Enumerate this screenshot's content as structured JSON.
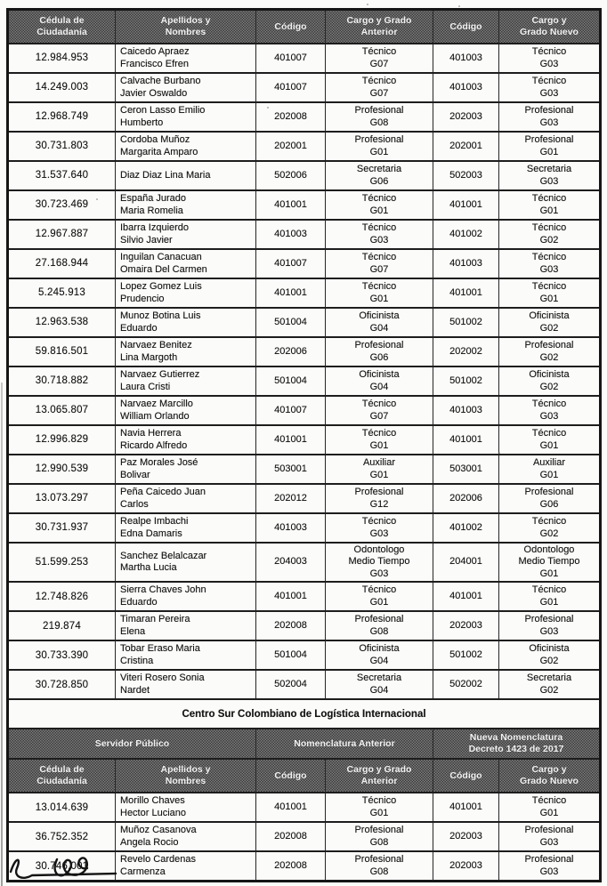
{
  "colors": {
    "paper": "#fbfbf9",
    "ink": "#141414",
    "header_bg": "#565656",
    "header_text": "#f3f3f3",
    "border": "#1d1d1d"
  },
  "table": {
    "headers": [
      "Cédula de\nCiudadanía",
      "Apellidos y\nNombres",
      "Código",
      "Cargo y Grado\nAnterior",
      "Código",
      "Cargo y\nGrado Nuevo"
    ],
    "rows": [
      [
        "12.984.953",
        "Caicedo Apraez\nFrancisco Efren",
        "401007",
        "Técnico\nG07",
        "401003",
        "Técnico\nG03"
      ],
      [
        "14.249.003",
        "Calvache Burbano\nJavier Oswaldo",
        "401007",
        "Técnico\nG07",
        "401003",
        "Técnico\nG03"
      ],
      [
        "12.968.749",
        "Ceron Lasso  Emilio\nHumberto",
        "202008",
        "Profesional\nG08",
        "202003",
        "Profesional\nG03"
      ],
      [
        "30.731.803",
        "Cordoba Muñoz\nMargarita Amparo",
        "202001",
        "Profesional\nG01",
        "202001",
        "Profesional\nG01"
      ],
      [
        "31.537.640",
        "Diaz Diaz Lina Maria",
        "502006",
        "Secretaria\nG06",
        "502003",
        "Secretaria\nG03"
      ],
      [
        "30.723.469",
        "España Jurado\nMaria Romelia",
        "401001",
        "Técnico\nG01",
        "401001",
        "Técnico\nG01"
      ],
      [
        "12.967.887",
        "Ibarra Izquierdo\nSilvio Javier",
        "401003",
        "Técnico\nG03",
        "401002",
        "Técnico\nG02"
      ],
      [
        "27.168.944",
        "Inguilan Canacuan\nOmaira Del Carmen",
        "401007",
        "Técnico\nG07",
        "401003",
        "Técnico\nG03"
      ],
      [
        "5.245.913",
        "Lopez Gomez Luis\nPrudencio",
        "401001",
        "Técnico\nG01",
        "401001",
        "Técnico\nG01"
      ],
      [
        "12.963.538",
        "Munoz Botina Luis\nEduardo",
        "501004",
        "Oficinista\nG04",
        "501002",
        "Oficinista\nG02"
      ],
      [
        "59.816.501",
        "Narvaez Benitez\nLina Margoth",
        "202006",
        "Profesional\nG06",
        "202002",
        "Profesional\nG02"
      ],
      [
        "30.718.882",
        "Narvaez Gutierrez\nLaura Cristi",
        "501004",
        "Oficinista\nG04",
        "501002",
        "Oficinista\nG02"
      ],
      [
        "13.065.807",
        "Narvaez Marcillo\nWilliam Orlando",
        "401007",
        "Técnico\nG07",
        "401003",
        "Técnico\nG03"
      ],
      [
        "12.996.829",
        "Navia Herrera\nRicardo Alfredo",
        "401001",
        "Técnico\nG01",
        "401001",
        "Técnico\nG01"
      ],
      [
        "12.990.539",
        "Paz Morales José\nBolivar",
        "503001",
        "Auxiliar\nG01",
        "503001",
        "Auxiliar\nG01"
      ],
      [
        "13.073.297",
        "Peña Caicedo Juan\nCarlos",
        "202012",
        "Profesional\nG12",
        "202006",
        "Profesional\nG06"
      ],
      [
        "30.731.937",
        "Realpe Imbachi\nEdna Damaris",
        "401003",
        "Técnico\nG03",
        "401002",
        "Técnico\nG02"
      ],
      [
        "51.599.253",
        "Sanchez Belalcazar\nMartha Lucia",
        "204003",
        "Odontologo\nMedio Tiempo\nG03",
        "204001",
        "Odontologo\nMedio Tiempo\nG01"
      ],
      [
        "12.748.826",
        "Sierra Chaves John\nEduardo",
        "401001",
        "Técnico\nG01",
        "401001",
        "Técnico\nG01"
      ],
      [
        "219.874",
        "Timaran Pereira\nElena",
        "202008",
        "Profesional\nG08",
        "202003",
        "Profesional\nG03"
      ],
      [
        "30.733.390",
        "Tobar Eraso Maria\nCristina",
        "501004",
        "Oficinista\nG04",
        "501002",
        "Oficinista\nG02"
      ],
      [
        "30.728.850",
        "Viteri Rosero Sonia\nNardet",
        "502004",
        "Secretaria\nG04",
        "502002",
        "Secretaria\nG02"
      ]
    ]
  },
  "section2": {
    "title": "Centro Sur Colombiano de Logística Internacional",
    "group_headers": [
      "Servidor Público",
      "Nomenclatura Anterior",
      "Nueva Nomenclatura\nDecreto 1423 de 2017"
    ],
    "headers": [
      "Cédula de\nCiudadanía",
      "Apellidos y\nNombres",
      "Código",
      "Cargo y Grado\nAnterior",
      "Código",
      "Cargo y\nGrado Nuevo"
    ],
    "rows": [
      [
        "13.014.639",
        "Morillo Chaves\nHector Luciano",
        "401001",
        "Técnico\nG01",
        "401001",
        "Técnico\nG01"
      ],
      [
        "36.752.352",
        "Muñoz Casanova\nAngela Rocio",
        "202008",
        "Profesional\nG08",
        "202003",
        "Profesional\nG03"
      ],
      [
        "30.746.001",
        "Revelo Cardenas\nCarmenza",
        "202008",
        "Profesional\nG08",
        "202003",
        "Profesional\nG03"
      ]
    ]
  },
  "annotations": {
    "handwritten_mark": "signature-scribble"
  }
}
